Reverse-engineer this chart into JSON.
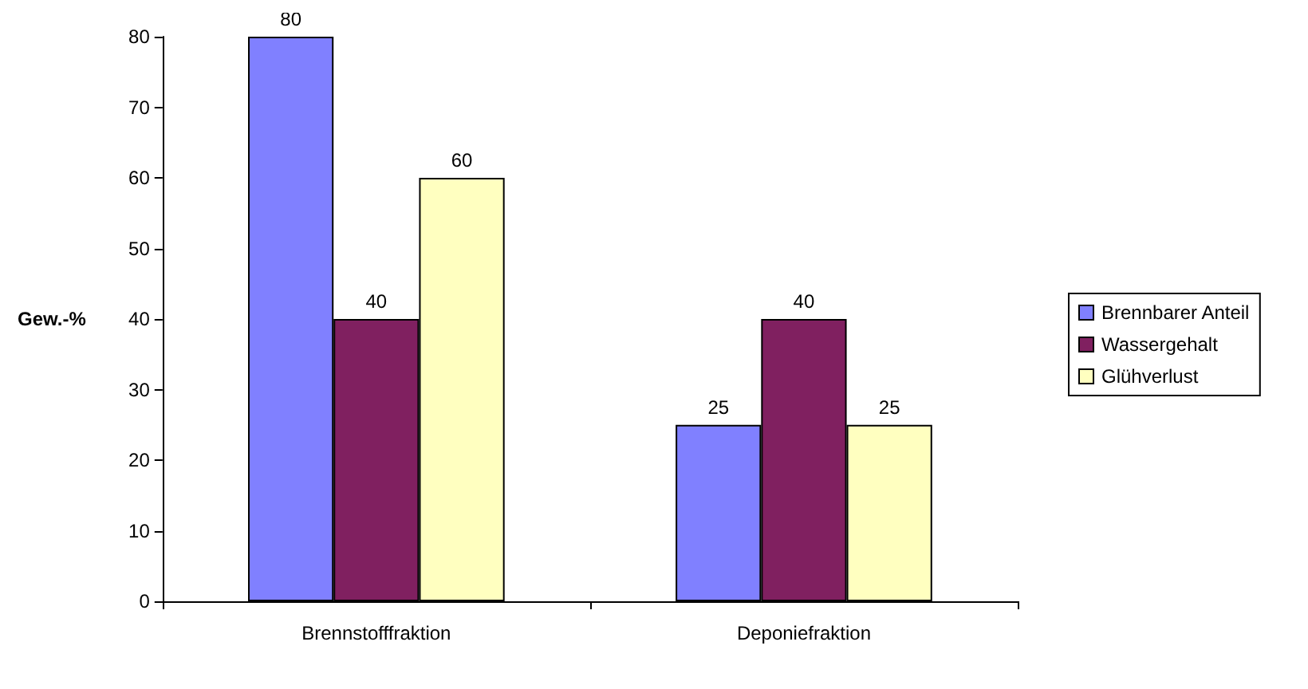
{
  "chart_data": {
    "type": "bar",
    "ylabel": "Gew.-%",
    "categories": [
      "Brennstofffraktion",
      "Deponiefraktion"
    ],
    "series": [
      {
        "name": "Brennbarer Anteil",
        "color": "#8080ff",
        "values": [
          80,
          25
        ]
      },
      {
        "name": "Wassergehalt",
        "color": "#802060",
        "values": [
          40,
          40
        ]
      },
      {
        "name": "Glühverlust",
        "color": "#ffffc0",
        "values": [
          60,
          25
        ]
      }
    ],
    "ylim": [
      0,
      80
    ],
    "yticks": [
      0,
      10,
      20,
      30,
      40,
      50,
      60,
      70,
      80
    ],
    "grid": false,
    "legend": "right",
    "data_labels": true
  }
}
